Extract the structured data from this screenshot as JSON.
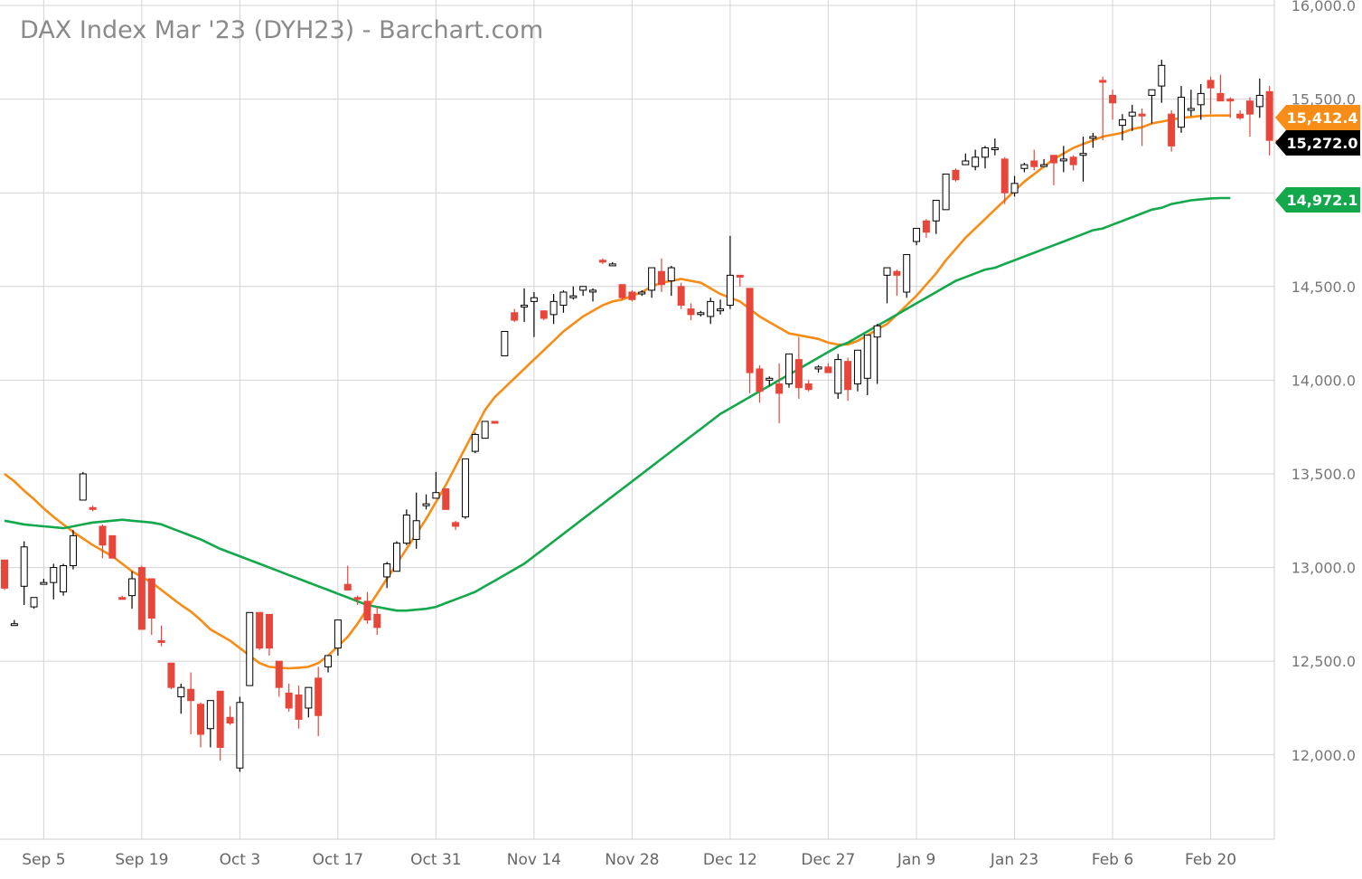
{
  "chart_data": {
    "type": "candlestick",
    "title": "DAX Index Mar '23 (DYH23) - Barchart.com",
    "ylim": [
      11550,
      16000
    ],
    "y_ticks": [
      12000,
      12500,
      13000,
      13500,
      14000,
      14500,
      15000,
      15500,
      16000
    ],
    "y_tick_labels": [
      "12,000.0",
      "12,500.0",
      "13,000.0",
      "13,500.0",
      "14,000.0",
      "14,500.0",
      "",
      "15,500.0",
      "16,000.0"
    ],
    "x_tick_labels": [
      "Sep 5",
      "Sep 19",
      "Oct 3",
      "Oct 17",
      "Oct 31",
      "Nov 14",
      "Nov 28",
      "Dec 12",
      "Dec 27",
      "Jan 9",
      "Jan 23",
      "Feb 6",
      "Feb 20"
    ],
    "x_tick_index": [
      4,
      14,
      24,
      34,
      44,
      54,
      64,
      74,
      84,
      93,
      103,
      113,
      123
    ],
    "grid": true,
    "colors": {
      "up": "#ffffff",
      "up_outline": "#000000",
      "down": "#e8463a",
      "orange_ma": "#f78c16",
      "green_ma": "#13a84b",
      "grid": "#d4d4d4"
    },
    "series": [
      {
        "kind": "ohlc",
        "values": [
          [
            13040,
            13040,
            12880,
            12890
          ],
          [
            12700,
            12720,
            12690,
            12700
          ],
          [
            12900,
            13140,
            12800,
            13110
          ],
          [
            12790,
            12840,
            12780,
            12840
          ],
          [
            12920,
            12940,
            12910,
            12920
          ],
          [
            12920,
            13020,
            12830,
            13000
          ],
          [
            12870,
            13020,
            12850,
            13010
          ],
          [
            13010,
            13200,
            12990,
            13170
          ],
          [
            13360,
            13510,
            13360,
            13500
          ],
          [
            13320,
            13330,
            13300,
            13310
          ],
          [
            13220,
            13230,
            13050,
            13120
          ],
          [
            13170,
            13170,
            13050,
            13050
          ],
          [
            12840,
            12850,
            12830,
            12830
          ],
          [
            12850,
            12980,
            12780,
            12940
          ],
          [
            13000,
            13010,
            12670,
            12670
          ],
          [
            12940,
            12940,
            12640,
            12730
          ],
          [
            12610,
            12690,
            12580,
            12600
          ],
          [
            12490,
            12490,
            12350,
            12360
          ],
          [
            12310,
            12380,
            12220,
            12360
          ],
          [
            12350,
            12440,
            12110,
            12290
          ],
          [
            12270,
            12280,
            12040,
            12110
          ],
          [
            12140,
            12290,
            12040,
            12290
          ],
          [
            12340,
            12340,
            11970,
            12040
          ],
          [
            12200,
            12260,
            12160,
            12170
          ],
          [
            11930,
            12310,
            11910,
            12280
          ],
          [
            12370,
            12760,
            12370,
            12760
          ],
          [
            12760,
            12760,
            12560,
            12570
          ],
          [
            12750,
            12750,
            12530,
            12570
          ],
          [
            12500,
            12500,
            12310,
            12360
          ],
          [
            12330,
            12380,
            12230,
            12250
          ],
          [
            12320,
            12370,
            12140,
            12190
          ],
          [
            12250,
            12360,
            12200,
            12360
          ],
          [
            12410,
            12470,
            12100,
            12210
          ],
          [
            12470,
            12530,
            12440,
            12530
          ],
          [
            12570,
            12720,
            12530,
            12720
          ],
          [
            12910,
            13010,
            12910,
            12880
          ],
          [
            12840,
            12850,
            12800,
            12830
          ],
          [
            12820,
            12870,
            12700,
            12720
          ],
          [
            12750,
            12790,
            12640,
            12680
          ],
          [
            12950,
            13030,
            12890,
            13020
          ],
          [
            12980,
            13140,
            12980,
            13130
          ],
          [
            13130,
            13310,
            13120,
            13280
          ],
          [
            13150,
            13400,
            13100,
            13250
          ],
          [
            13330,
            13390,
            13310,
            13340
          ],
          [
            13370,
            13510,
            13370,
            13400
          ],
          [
            13420,
            13420,
            13330,
            13310
          ],
          [
            13240,
            13250,
            13200,
            13220
          ],
          [
            13270,
            13580,
            13260,
            13580
          ],
          [
            13620,
            13720,
            13610,
            13710
          ],
          [
            13690,
            13780,
            13690,
            13780
          ],
          [
            13780,
            13780,
            13770,
            13770
          ],
          [
            14130,
            14130,
            14140,
            14260
          ],
          [
            14360,
            14380,
            14310,
            14320
          ],
          [
            14400,
            14490,
            14310,
            14400
          ],
          [
            14420,
            14470,
            14230,
            14440
          ],
          [
            14370,
            14370,
            14320,
            14330
          ],
          [
            14350,
            14460,
            14300,
            14420
          ],
          [
            14400,
            14480,
            14360,
            14470
          ],
          [
            14450,
            14500,
            14430,
            14450
          ],
          [
            14480,
            14500,
            14450,
            14500
          ],
          [
            14480,
            14490,
            14420,
            14480
          ],
          [
            14640,
            14650,
            14620,
            14630
          ],
          [
            14620,
            14630,
            14610,
            14620
          ],
          [
            14510,
            14510,
            14430,
            14440
          ],
          [
            14470,
            14480,
            14420,
            14430
          ],
          [
            14470,
            14480,
            14450,
            14470
          ],
          [
            14480,
            14600,
            14440,
            14600
          ],
          [
            14580,
            14650,
            14470,
            14510
          ],
          [
            14530,
            14610,
            14450,
            14600
          ],
          [
            14500,
            14520,
            14380,
            14400
          ],
          [
            14380,
            14410,
            14320,
            14350
          ],
          [
            14360,
            14370,
            14340,
            14360
          ],
          [
            14340,
            14440,
            14300,
            14420
          ],
          [
            14380,
            14430,
            14350,
            14380
          ],
          [
            14400,
            14770,
            14380,
            14560
          ],
          [
            14560,
            14560,
            14500,
            14550
          ],
          [
            14490,
            14490,
            13930,
            14040
          ],
          [
            14060,
            14080,
            13880,
            13940
          ],
          [
            14000,
            14020,
            13970,
            14010
          ],
          [
            13980,
            14090,
            13770,
            13930
          ],
          [
            13980,
            14110,
            13960,
            14140
          ],
          [
            14110,
            14230,
            13900,
            13960
          ],
          [
            13980,
            14000,
            13940,
            13950
          ],
          [
            14060,
            14080,
            14040,
            14070
          ],
          [
            14070,
            14090,
            14040,
            14040
          ],
          [
            13930,
            14140,
            13900,
            14110
          ],
          [
            14100,
            14120,
            13890,
            13950
          ],
          [
            13980,
            14160,
            13940,
            14160
          ],
          [
            14010,
            14190,
            13920,
            14240
          ],
          [
            14230,
            14300,
            13980,
            14290
          ],
          [
            14560,
            14600,
            14410,
            14600
          ],
          [
            14580,
            14590,
            14450,
            14560
          ],
          [
            14470,
            14570,
            14440,
            14670
          ],
          [
            14740,
            14780,
            14720,
            14810
          ],
          [
            14850,
            14860,
            14760,
            14790
          ],
          [
            14850,
            14910,
            14780,
            14960
          ],
          [
            14910,
            15070,
            14910,
            15100
          ],
          [
            15120,
            15130,
            15060,
            15070
          ],
          [
            15150,
            15210,
            15170,
            15170
          ],
          [
            15140,
            15230,
            15120,
            15190
          ],
          [
            15190,
            15250,
            15130,
            15240
          ],
          [
            15230,
            15290,
            15200,
            15240
          ],
          [
            15180,
            15190,
            14940,
            15000
          ],
          [
            15000,
            15090,
            14980,
            15050
          ],
          [
            15130,
            15160,
            15110,
            15150
          ],
          [
            15170,
            15230,
            15120,
            15140
          ],
          [
            15150,
            15180,
            15140,
            15150
          ],
          [
            15200,
            15170,
            15040,
            15160
          ],
          [
            15180,
            15250,
            15110,
            15180
          ],
          [
            15190,
            15200,
            15120,
            15150
          ],
          [
            15200,
            15300,
            15060,
            15210
          ],
          [
            15300,
            15320,
            15240,
            15300
          ],
          [
            15600,
            15620,
            15280,
            15590
          ],
          [
            15520,
            15550,
            15390,
            15480
          ],
          [
            15360,
            15420,
            15280,
            15390
          ],
          [
            15410,
            15470,
            15330,
            15430
          ],
          [
            15420,
            15450,
            15250,
            15410
          ],
          [
            15520,
            15550,
            15370,
            15550
          ],
          [
            15570,
            15710,
            15480,
            15680
          ],
          [
            15420,
            15440,
            15220,
            15250
          ],
          [
            15350,
            15570,
            15320,
            15510
          ],
          [
            15440,
            15550,
            15410,
            15450
          ],
          [
            15470,
            15580,
            15390,
            15530
          ],
          [
            15600,
            15620,
            15420,
            15560
          ],
          [
            15530,
            15630,
            15490,
            15490
          ],
          [
            15500,
            15510,
            15400,
            15490
          ],
          [
            15420,
            15440,
            15390,
            15400
          ],
          [
            15490,
            15510,
            15300,
            15420
          ],
          [
            15460,
            15610,
            15400,
            15520
          ],
          [
            15540,
            15570,
            15200,
            15280
          ],
          [
            15280,
            15290,
            15250,
            15270
          ]
        ]
      },
      {
        "kind": "moving_average",
        "name": "",
        "last": 15412.4,
        "values": [
          13500,
          13460,
          13410,
          13365,
          13315,
          13270,
          13230,
          13190,
          13155,
          13120,
          13090,
          13060,
          13020,
          12980,
          12950,
          12920,
          12880,
          12840,
          12800,
          12765,
          12720,
          12670,
          12640,
          12610,
          12570,
          12530,
          12490,
          12470,
          12465,
          12462,
          12465,
          12470,
          12490,
          12530,
          12580,
          12630,
          12700,
          12780,
          12860,
          12940,
          13020,
          13100,
          13180,
          13260,
          13350,
          13440,
          13540,
          13640,
          13740,
          13840,
          13910,
          13960,
          14010,
          14060,
          14110,
          14160,
          14210,
          14260,
          14300,
          14340,
          14370,
          14400,
          14420,
          14430,
          14450,
          14470,
          14500,
          14520,
          14530,
          14540,
          14530,
          14520,
          14490,
          14460,
          14440,
          14420,
          14380,
          14340,
          14310,
          14280,
          14250,
          14240,
          14230,
          14220,
          14200,
          14190,
          14190,
          14210,
          14240,
          14270,
          14300,
          14350,
          14400,
          14450,
          14510,
          14570,
          14640,
          14700,
          14760,
          14810,
          14860,
          14910,
          14960,
          15010,
          15060,
          15100,
          15140,
          15180,
          15210,
          15240,
          15260,
          15280,
          15300,
          15310,
          15320,
          15340,
          15350,
          15370,
          15380,
          15390,
          15400,
          15405,
          15410,
          15412,
          15412.4,
          15412.4
        ]
      },
      {
        "kind": "moving_average",
        "name": "",
        "last": 14972.1,
        "values": [
          13250,
          13240,
          13230,
          13225,
          13220,
          13215,
          13210,
          13220,
          13230,
          13240,
          13245,
          13250,
          13255,
          13250,
          13245,
          13240,
          13230,
          13210,
          13190,
          13170,
          13150,
          13125,
          13100,
          13080,
          13060,
          13040,
          13020,
          13000,
          12980,
          12960,
          12940,
          12920,
          12900,
          12880,
          12860,
          12840,
          12820,
          12800,
          12790,
          12780,
          12770,
          12770,
          12775,
          12780,
          12790,
          12810,
          12830,
          12850,
          12870,
          12900,
          12930,
          12960,
          12990,
          13020,
          13060,
          13100,
          13140,
          13180,
          13220,
          13260,
          13300,
          13340,
          13380,
          13420,
          13460,
          13500,
          13540,
          13580,
          13620,
          13660,
          13700,
          13740,
          13780,
          13820,
          13850,
          13880,
          13910,
          13940,
          13970,
          14000,
          14030,
          14060,
          14090,
          14120,
          14150,
          14180,
          14200,
          14230,
          14260,
          14290,
          14320,
          14350,
          14380,
          14410,
          14440,
          14470,
          14500,
          14530,
          14550,
          14570,
          14590,
          14600,
          14620,
          14640,
          14660,
          14680,
          14700,
          14720,
          14740,
          14760,
          14780,
          14800,
          14810,
          14830,
          14850,
          14870,
          14890,
          14910,
          14920,
          14940,
          14950,
          14960,
          14965,
          14970,
          14972.1,
          14972.1
        ]
      }
    ],
    "price_labels": [
      {
        "value": "15,412.4",
        "color": "#f78c16"
      },
      {
        "value": "15,272.0",
        "color": "#000000"
      },
      {
        "value": "14,972.1",
        "color": "#13a84b"
      }
    ]
  }
}
